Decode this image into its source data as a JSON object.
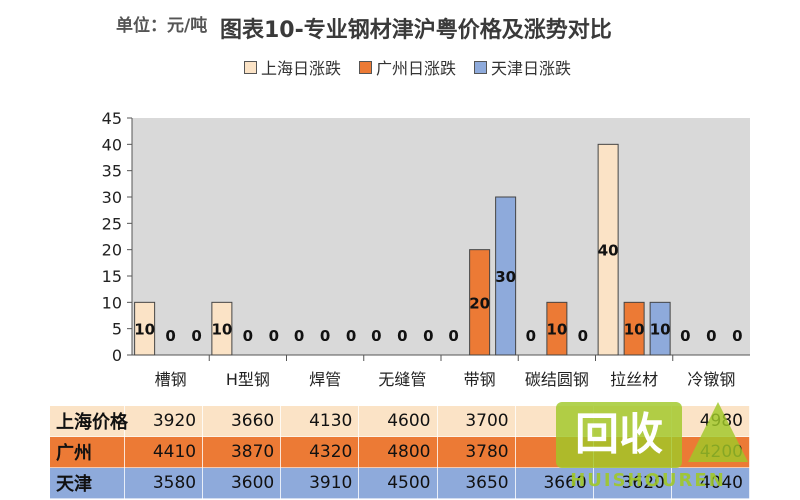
{
  "unit_label": "单位：元/吨",
  "chart_data": {
    "type": "bar",
    "title": "图表10-专业钢材津沪粤价格及涨势对比",
    "categories": [
      "槽钢",
      "H型钢",
      "焊管",
      "无缝管",
      "带钢",
      "碳结圆钢",
      "拉丝材",
      "冷镦钢"
    ],
    "series": [
      {
        "name": "上海日涨跌",
        "color": "#fbe3c6",
        "values": [
          10,
          10,
          0,
          0,
          0,
          0,
          40,
          0
        ]
      },
      {
        "name": "广州日涨跌",
        "color": "#ec7a35",
        "values": [
          0,
          0,
          0,
          0,
          20,
          10,
          10,
          0
        ]
      },
      {
        "name": "天津日涨跌",
        "color": "#8eaadb",
        "values": [
          0,
          0,
          0,
          0,
          30,
          0,
          10,
          0
        ]
      }
    ],
    "ylim": [
      0,
      45
    ],
    "yticks": [
      0,
      5,
      10,
      15,
      20,
      25,
      30,
      35,
      40,
      45
    ],
    "grid": false,
    "legend_position": "top",
    "plot_background": "#d9d9d9"
  },
  "price_table": {
    "rows": [
      {
        "city": "上海价格",
        "values": [
          "3920",
          "3660",
          "4130",
          "4600",
          "3700",
          "",
          "",
          "4980"
        ]
      },
      {
        "city": "广州",
        "values": [
          "4410",
          "3870",
          "4320",
          "4800",
          "3780",
          "",
          "",
          "4200"
        ]
      },
      {
        "city": "天津",
        "values": [
          "3580",
          "3600",
          "3910",
          "4500",
          "3650",
          "3660",
          "3620",
          "4040"
        ]
      }
    ]
  },
  "watermark": {
    "logo": "回收",
    "text": "HUISHOUREN"
  }
}
